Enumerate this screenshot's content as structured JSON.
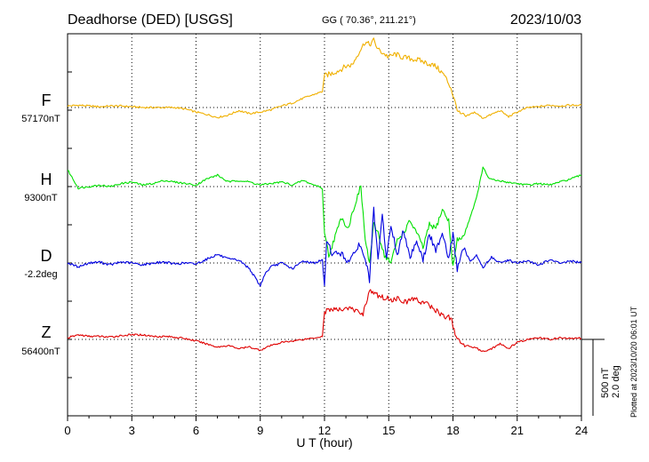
{
  "header": {
    "station": "Deadhorse (DED)  [USGS]",
    "coords": "GG ( 70.36°, 211.21°)",
    "date": "2023/10/03"
  },
  "footer": {
    "plotted": "Plotted at 2023/10/20 06:01 UT"
  },
  "scale": {
    "nt": "500 nT",
    "deg": "2.0 deg"
  },
  "chart_data": {
    "type": "line",
    "xlabel": "U T (hour)",
    "xlim": [
      0,
      24
    ],
    "xticks": [
      0,
      3,
      6,
      9,
      12,
      15,
      18,
      21,
      24
    ],
    "grid": true,
    "series": [
      {
        "name": "F",
        "baseline_label": "57170nT",
        "color": "#f0b000",
        "x": [
          0,
          0.5,
          1,
          1.5,
          2,
          2.5,
          3,
          3.5,
          4,
          4.5,
          5,
          5.5,
          6,
          6.5,
          7,
          7.5,
          8,
          8.5,
          9,
          9.5,
          10,
          10.5,
          11,
          11.5,
          11.9,
          12,
          12.3,
          12.7,
          13,
          13.3,
          13.6,
          13.9,
          14.1,
          14.3,
          14.5,
          14.7,
          15,
          15.3,
          15.6,
          16,
          16.4,
          16.8,
          17.2,
          17.6,
          17.9,
          18.1,
          18.3,
          18.6,
          19,
          19.4,
          19.8,
          20.2,
          20.6,
          21,
          21.5,
          22,
          22.5,
          23,
          23.5,
          24
        ],
        "values": [
          20,
          30,
          20,
          10,
          20,
          20,
          10,
          0,
          0,
          0,
          0,
          -20,
          -60,
          -90,
          -130,
          -100,
          -40,
          -80,
          -60,
          -30,
          20,
          60,
          120,
          170,
          210,
          420,
          440,
          490,
          540,
          560,
          720,
          860,
          820,
          880,
          760,
          720,
          660,
          700,
          660,
          640,
          620,
          580,
          540,
          420,
          260,
          60,
          -80,
          -120,
          -60,
          -140,
          -90,
          -40,
          -120,
          -60,
          0,
          10,
          30,
          20,
          30,
          30
        ]
      },
      {
        "name": "H",
        "baseline_label": "9300nT",
        "color": "#00e000",
        "x": [
          0,
          0.5,
          1,
          1.5,
          2,
          2.5,
          3,
          3.5,
          4,
          4.5,
          5,
          5.5,
          6,
          6.5,
          7,
          7.5,
          8,
          8.5,
          9,
          9.5,
          10,
          10.5,
          11,
          11.5,
          11.8,
          11.9,
          12,
          12.2,
          12.5,
          12.8,
          13.1,
          13.4,
          13.7,
          13.9,
          14.1,
          14.3,
          14.5,
          14.8,
          15.1,
          15.4,
          15.7,
          16,
          16.3,
          16.6,
          16.9,
          17.2,
          17.5,
          17.8,
          18.0,
          18.2,
          18.5,
          18.8,
          19.1,
          19.4,
          19.7,
          20,
          20.5,
          21,
          21.5,
          22,
          22.5,
          23,
          23.5,
          24
        ],
        "values": [
          220,
          -20,
          0,
          20,
          0,
          40,
          60,
          20,
          40,
          80,
          60,
          40,
          20,
          100,
          150,
          60,
          80,
          60,
          20,
          40,
          60,
          20,
          80,
          20,
          0,
          -40,
          -600,
          -900,
          -650,
          -400,
          -550,
          -250,
          0,
          -700,
          -1000,
          -500,
          -600,
          -900,
          -1000,
          -700,
          -600,
          -450,
          -600,
          -800,
          -500,
          -550,
          -300,
          -450,
          -1050,
          -700,
          -650,
          -400,
          -150,
          250,
          100,
          80,
          60,
          40,
          20,
          40,
          20,
          60,
          100,
          150
        ]
      },
      {
        "name": "D",
        "baseline_label": "-2.2deg",
        "color": "#0000e0",
        "x": [
          0,
          0.5,
          1,
          1.5,
          2,
          2.5,
          3,
          3.5,
          4,
          4.5,
          5,
          5.5,
          6,
          6.5,
          7,
          7.5,
          8,
          8.5,
          9,
          9.2,
          9.5,
          10,
          10.5,
          11,
          11.5,
          11.9,
          12,
          12.1,
          12.4,
          12.7,
          13,
          13.3,
          13.6,
          13.9,
          14.1,
          14.3,
          14.5,
          14.7,
          14.9,
          15.1,
          15.4,
          15.7,
          16,
          16.3,
          16.6,
          16.9,
          17.2,
          17.5,
          17.8,
          18.0,
          18.2,
          18.5,
          18.8,
          19.1,
          19.4,
          19.8,
          20.2,
          20.6,
          21,
          21.5,
          22,
          22.5,
          23,
          23.5,
          24
        ],
        "values": [
          0,
          -0.4,
          0,
          0.1,
          -0.2,
          0.1,
          0,
          -0.2,
          0,
          0.1,
          -0.1,
          0,
          -0.1,
          0.4,
          0.9,
          0.4,
          0.3,
          -0.6,
          -2.4,
          -1.2,
          -0.4,
          0,
          -0.6,
          0.2,
          0,
          0.3,
          -2.5,
          2.5,
          0.8,
          1.2,
          0.3,
          0.5,
          2.0,
          0.5,
          -1.8,
          5.5,
          0.2,
          5.0,
          0.4,
          4.0,
          0.8,
          3.5,
          0.6,
          2.4,
          0.3,
          3.0,
          1.2,
          3.3,
          0.5,
          3.0,
          -0.6,
          1.5,
          0.2,
          0.8,
          -0.5,
          0.6,
          0,
          0.3,
          0,
          0.2,
          -0.2,
          0.3,
          0,
          0.2,
          0
        ]
      },
      {
        "name": "Z",
        "baseline_label": "56400nT",
        "color": "#e00000",
        "x": [
          0,
          0.5,
          1,
          1.5,
          2,
          2.5,
          3,
          3.5,
          4,
          4.5,
          5,
          5.5,
          6,
          6.5,
          7,
          7.5,
          8,
          8.5,
          9,
          9.5,
          10,
          10.5,
          11,
          11.5,
          11.9,
          12,
          12.3,
          12.7,
          13,
          13.4,
          13.8,
          14.1,
          14.3,
          14.6,
          14.9,
          15.2,
          15.5,
          15.8,
          16.1,
          16.4,
          16.7,
          17,
          17.3,
          17.6,
          17.9,
          18.1,
          18.3,
          18.6,
          19,
          19.4,
          19.8,
          20.2,
          20.6,
          21,
          21.5,
          22,
          22.5,
          23,
          23.5,
          24
        ],
        "values": [
          20,
          60,
          40,
          40,
          30,
          50,
          60,
          60,
          40,
          40,
          30,
          10,
          -20,
          -60,
          -100,
          -80,
          -120,
          -100,
          -140,
          -80,
          -40,
          -20,
          0,
          20,
          40,
          360,
          400,
          380,
          420,
          380,
          340,
          640,
          600,
          560,
          540,
          520,
          540,
          480,
          540,
          500,
          480,
          420,
          360,
          300,
          280,
          80,
          -40,
          -80,
          -100,
          -160,
          -120,
          -60,
          -120,
          -40,
          0,
          20,
          0,
          20,
          10,
          20
        ]
      }
    ]
  }
}
